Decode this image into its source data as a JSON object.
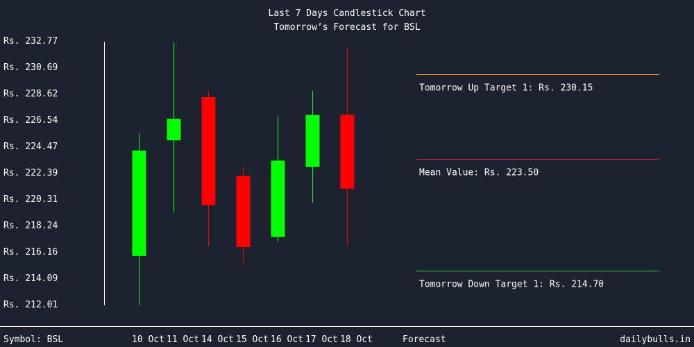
{
  "chart_data": {
    "type": "candlestick",
    "title": "Last 7 Days Candlestick Chart",
    "subtitle": "Tomorrow’s Forecast for BSL",
    "ylim": [
      212.01,
      232.77
    ],
    "y_ticks": [
      "Rs. 232.77",
      "Rs. 230.69",
      "Rs. 228.62",
      "Rs. 226.54",
      "Rs. 224.47",
      "Rs. 222.39",
      "Rs. 220.31",
      "Rs. 218.24",
      "Rs. 216.16",
      "Rs. 214.09",
      "Rs. 212.01"
    ],
    "categories": [
      "10 Oct",
      "11 Oct",
      "14 Oct",
      "15 Oct",
      "16 Oct",
      "17 Oct",
      "18 Oct"
    ],
    "candles": [
      {
        "date": "10 Oct",
        "open": 215.9,
        "high": 225.6,
        "low": 212.0,
        "close": 224.2,
        "direction": "up"
      },
      {
        "date": "11 Oct",
        "open": 225.0,
        "high": 232.7,
        "low": 219.3,
        "close": 226.7,
        "direction": "up"
      },
      {
        "date": "14 Oct",
        "open": 228.4,
        "high": 228.9,
        "low": 216.7,
        "close": 219.9,
        "direction": "down"
      },
      {
        "date": "15 Oct",
        "open": 222.2,
        "high": 222.9,
        "low": 215.3,
        "close": 216.6,
        "direction": "down"
      },
      {
        "date": "16 Oct",
        "open": 217.4,
        "high": 226.9,
        "low": 217.0,
        "close": 223.4,
        "direction": "up"
      },
      {
        "date": "17 Oct",
        "open": 222.9,
        "high": 228.9,
        "low": 220.1,
        "close": 227.0,
        "direction": "up"
      },
      {
        "date": "18 Oct",
        "open": 227.0,
        "high": 232.3,
        "low": 216.7,
        "close": 221.2,
        "direction": "down"
      }
    ],
    "forecast": {
      "label": "Forecast",
      "lines": [
        {
          "name": "up_target",
          "label": "Tomorrow Up Target 1: Rs. 230.15",
          "color": "#ff9f1a"
        },
        {
          "name": "mean",
          "label": "Mean Value: Rs. 223.50",
          "color": "#e8262c"
        },
        {
          "name": "down_target",
          "label": "Tomorrow Down Target 1: Rs. 214.70",
          "color": "#2bd92b"
        }
      ]
    },
    "colors": {
      "up": "#00ff00",
      "down": "#ff0000",
      "background": "#1c2230",
      "axis": "#ffffff"
    }
  },
  "footer": {
    "symbol": "Symbol: BSL",
    "brand": "dailybulls.in"
  }
}
